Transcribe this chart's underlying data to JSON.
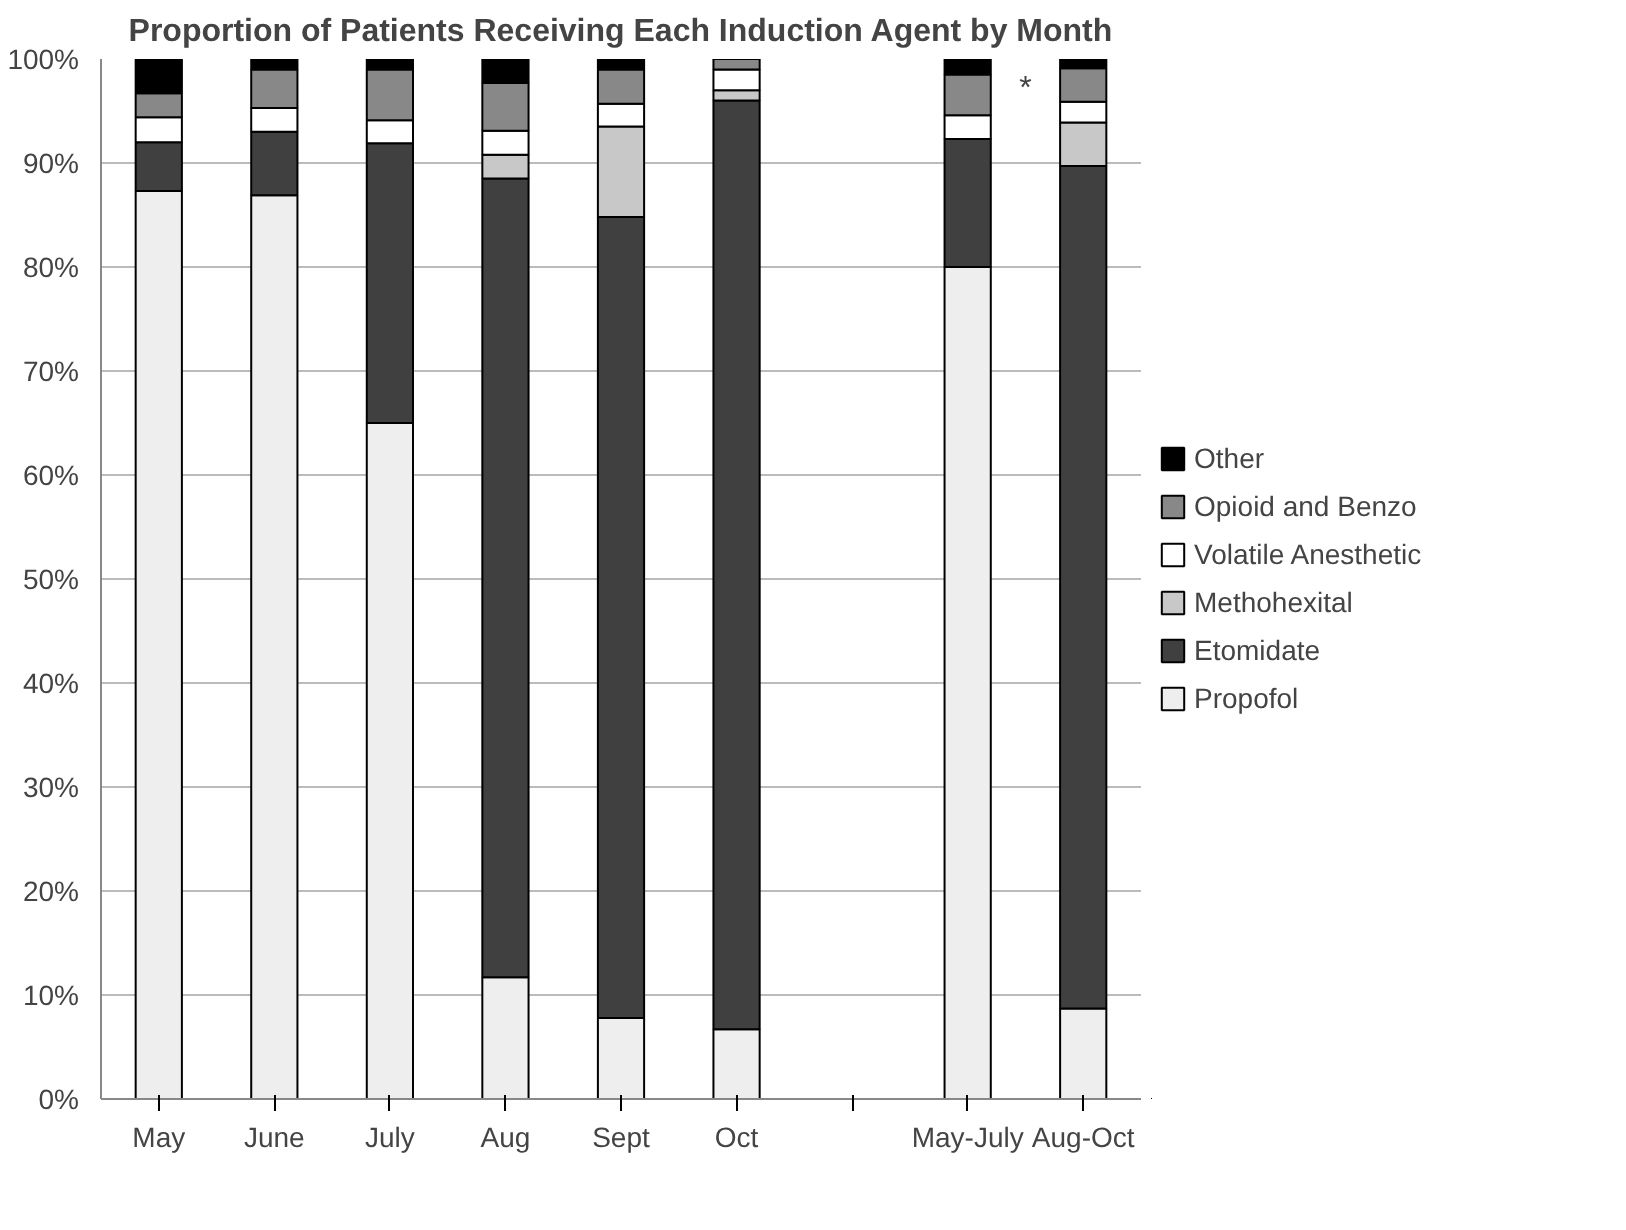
{
  "chart_data": {
    "type": "bar",
    "stacked": true,
    "title": "Proportion of Patients Receiving Each Induction Agent by Month",
    "categories": [
      "May",
      "June",
      "July",
      "Aug",
      "Sept",
      "Oct",
      null,
      "May-July",
      "Aug-Oct"
    ],
    "series": [
      {
        "name": "Propofol",
        "color": "#eeeeee",
        "values": [
          87.3,
          86.9,
          65.0,
          11.7,
          7.8,
          6.7,
          null,
          80.0,
          8.7
        ]
      },
      {
        "name": "Etomidate",
        "color": "#404040",
        "values": [
          4.7,
          6.1,
          26.9,
          76.8,
          77.0,
          89.3,
          null,
          12.3,
          81.0
        ]
      },
      {
        "name": "Methohexital",
        "color": "#c8c8c8",
        "values": [
          0,
          0,
          0,
          2.3,
          8.7,
          1.0,
          null,
          0,
          4.2
        ]
      },
      {
        "name": "Volatile Anesthetic",
        "color": "#ffffff",
        "values": [
          2.4,
          2.3,
          2.2,
          2.3,
          2.2,
          2.0,
          null,
          2.3,
          2.0
        ]
      },
      {
        "name": "Opioid and Benzo",
        "color": "#888888",
        "values": [
          2.3,
          3.7,
          4.9,
          4.6,
          3.3,
          1.0,
          null,
          3.9,
          3.2
        ]
      },
      {
        "name": "Other",
        "color": "#000000",
        "values": [
          3.3,
          1.0,
          1.0,
          2.3,
          1.0,
          0,
          null,
          1.5,
          0.9
        ]
      }
    ],
    "ylim": [
      0,
      100
    ],
    "yticks": [
      {
        "value": 0,
        "label": "0%"
      },
      {
        "value": 10,
        "label": "10%"
      },
      {
        "value": 20,
        "label": "20%"
      },
      {
        "value": 30,
        "label": "30%"
      },
      {
        "value": 40,
        "label": "40%"
      },
      {
        "value": 50,
        "label": "50%"
      },
      {
        "value": 60,
        "label": "60%"
      },
      {
        "value": 70,
        "label": "70%"
      },
      {
        "value": 80,
        "label": "80%"
      },
      {
        "value": 90,
        "label": "90%"
      },
      {
        "value": 100,
        "label": "100%"
      }
    ],
    "grid": "y",
    "legend": "right",
    "annotations": [
      "*"
    ]
  }
}
